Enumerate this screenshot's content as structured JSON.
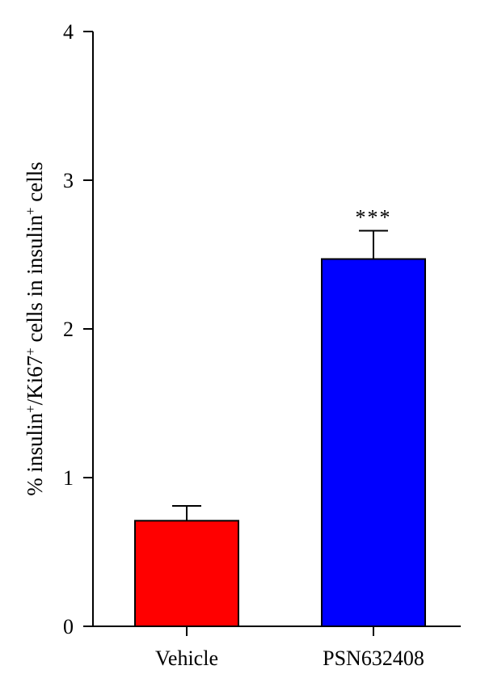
{
  "chart_data": {
    "type": "bar",
    "title": "",
    "xlabel": "",
    "ylabel": {
      "parts": [
        {
          "text": "% insulin"
        },
        {
          "text": "+",
          "sup": true
        },
        {
          "text": "/Ki67"
        },
        {
          "text": "+",
          "sup": true
        },
        {
          "text": " cells in insulin"
        },
        {
          "text": "+",
          "sup": true
        },
        {
          "text": " cells"
        }
      ]
    },
    "ylim": [
      0,
      4
    ],
    "yticks": [
      "0",
      "1",
      "2",
      "3",
      "4"
    ],
    "categories": [
      "Vehicle",
      "PSN632408"
    ],
    "values": [
      0.71,
      2.47
    ],
    "errors": [
      0.1,
      0.19
    ],
    "bar_colors": [
      "#ff0000",
      "#0000ff"
    ],
    "annotations": [
      "",
      "***"
    ],
    "grid": false,
    "legend": "none"
  }
}
